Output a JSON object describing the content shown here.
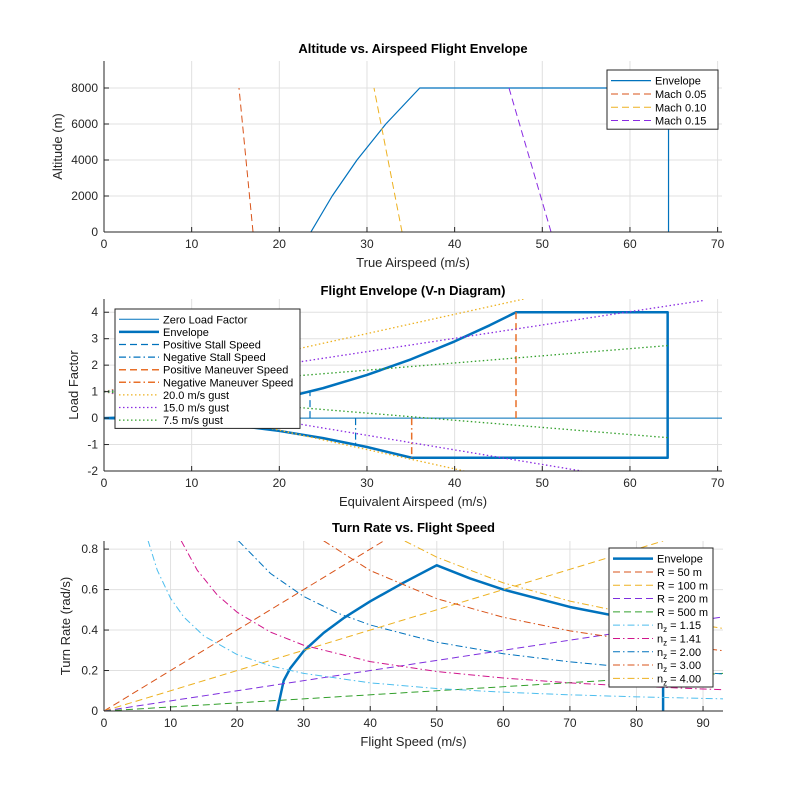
{
  "chart_data": [
    {
      "type": "line",
      "title": "Altitude vs. Airspeed Flight Envelope",
      "xlabel": "True Airspeed (m/s)",
      "ylabel": "Altitude (m)",
      "xlim": [
        0,
        70.5
      ],
      "ylim": [
        0,
        9500
      ],
      "xticks": [
        0,
        10,
        20,
        30,
        40,
        50,
        60,
        70
      ],
      "yticks": [
        0,
        2000,
        4000,
        6000,
        8000
      ],
      "grid": true,
      "legend": "top-right",
      "series": [
        {
          "name": "Envelope",
          "color": "#0072BD",
          "style": "solid",
          "width": 1.2,
          "points": [
            [
              23.6,
              0
            ],
            [
              26.03,
              2000
            ],
            [
              28.86,
              4000
            ],
            [
              32.15,
              6000
            ],
            [
              36.02,
              8000
            ],
            [
              64.4,
              8000
            ],
            [
              64.4,
              0
            ]
          ]
        },
        {
          "name": "Mach 0.05",
          "color": "#D95319",
          "style": "dashed",
          "width": 1,
          "points": [
            [
              17.0,
              0
            ],
            [
              15.4,
              8000
            ]
          ]
        },
        {
          "name": "Mach 0.10",
          "color": "#EDB120",
          "style": "dashed",
          "width": 1,
          "points": [
            [
              34.0,
              0
            ],
            [
              30.8,
              8000
            ]
          ]
        },
        {
          "name": "Mach 0.15",
          "color": "#8A2BE2",
          "style": "dashed",
          "width": 1,
          "points": [
            [
              51.0,
              0
            ],
            [
              46.2,
              8000
            ]
          ]
        }
      ]
    },
    {
      "type": "line",
      "title": "Flight Envelope (V-n Diagram)",
      "xlabel": "Equivalent Airspeed (m/s)",
      "ylabel": "Load Factor",
      "xlim": [
        0,
        70.5
      ],
      "ylim": [
        -2,
        4.5
      ],
      "xticks": [
        0,
        10,
        20,
        30,
        40,
        50,
        60,
        70
      ],
      "yticks": [
        -2,
        -1,
        0,
        1,
        2,
        3,
        4
      ],
      "grid": true,
      "legend": "top-left",
      "series": [
        {
          "name": "Zero Load Factor",
          "color": "#0072BD",
          "style": "solid",
          "width": 1,
          "points": [
            [
              0,
              0
            ],
            [
              70.5,
              0
            ]
          ]
        },
        {
          "name": "Envelope",
          "color": "#0072BD",
          "style": "solid",
          "width": 2.5,
          "points": [
            [
              0,
              0
            ],
            [
              5,
              0.045
            ],
            [
              10,
              0.181
            ],
            [
              15,
              0.407
            ],
            [
              20,
              0.724
            ],
            [
              25,
              1.132
            ],
            [
              30,
              1.63
            ],
            [
              35,
              2.218
            ],
            [
              40,
              2.897
            ],
            [
              44,
              3.506
            ],
            [
              47,
              4
            ],
            [
              64.3,
              4
            ],
            [
              64.3,
              -1.5
            ],
            [
              35.1,
              -1.5
            ],
            [
              30,
              -1.093
            ],
            [
              25,
              -0.759
            ],
            [
              20,
              -0.486
            ],
            [
              15,
              -0.273
            ],
            [
              10,
              -0.121
            ],
            [
              5,
              -0.03
            ],
            [
              0,
              0
            ]
          ]
        },
        {
          "name": "Positive Stall Speed",
          "color": "#0072BD",
          "style": "dashed",
          "width": 1.2,
          "points": [
            [
              23.5,
              0
            ],
            [
              23.5,
              1
            ]
          ]
        },
        {
          "name": "Negative Stall Speed",
          "color": "#0072BD",
          "style": "dashdot",
          "width": 1.2,
          "points": [
            [
              28.7,
              0
            ],
            [
              28.7,
              -1
            ]
          ]
        },
        {
          "name": "Positive Maneuver Speed",
          "color": "#E8702A",
          "style": "dashed",
          "width": 1.5,
          "points": [
            [
              47,
              0
            ],
            [
              47,
              4
            ]
          ]
        },
        {
          "name": "Negative Maneuver Speed",
          "color": "#E8702A",
          "style": "dashdot",
          "width": 1.5,
          "points": [
            [
              35.1,
              0
            ],
            [
              35.1,
              -1.5
            ]
          ]
        },
        {
          "name": "20.0 m/s gust",
          "color": "#EDB120",
          "style": "dotted",
          "width": 1.3,
          "points": [
            [
              0,
              1
            ],
            [
              47.9,
              4.5
            ]
          ],
          "points_neg": [
            [
              0,
              1
            ],
            [
              41.1,
              -2
            ]
          ]
        },
        {
          "name": "15.0 m/s gust",
          "color": "#8A2BE2",
          "style": "dotted",
          "width": 1.3,
          "points": [
            [
              0,
              1
            ],
            [
              68.5,
              4.45
            ]
          ],
          "points_neg": [
            [
              0,
              1
            ],
            [
              54.5,
              -2
            ]
          ]
        },
        {
          "name": "7.5 m/s gust",
          "color": "#33A02C",
          "style": "dotted",
          "width": 1.3,
          "points": [
            [
              0,
              1
            ],
            [
              64.3,
              2.74
            ]
          ],
          "points_neg": [
            [
              0,
              1
            ],
            [
              64.3,
              -0.74
            ]
          ]
        }
      ]
    },
    {
      "type": "line",
      "title": "Turn Rate vs. Flight Speed",
      "xlabel": "Flight Speed (m/s)",
      "ylabel": "Turn Rate (rad/s)",
      "xlim": [
        0,
        93
      ],
      "ylim": [
        0,
        0.84
      ],
      "xticks": [
        0,
        10,
        20,
        30,
        40,
        50,
        60,
        70,
        80,
        90
      ],
      "yticks": [
        0,
        0.2,
        0.4,
        0.6,
        0.8
      ],
      "grid": true,
      "legend": "top-right",
      "series": [
        {
          "name": "Envelope",
          "color": "#0072BD",
          "style": "solid",
          "width": 2.5,
          "points": [
            [
              26,
              0
            ],
            [
              27,
              0.15
            ],
            [
              28,
              0.212
            ],
            [
              30,
              0.296
            ],
            [
              33,
              0.386
            ],
            [
              36,
              0.459
            ],
            [
              40,
              0.542
            ],
            [
              45,
              0.634
            ],
            [
              50,
              0.72
            ],
            [
              55,
              0.655
            ],
            [
              60,
              0.6
            ],
            [
              70,
              0.514
            ],
            [
              80,
              0.45
            ],
            [
              84,
              0.429
            ],
            [
              84,
              0
            ]
          ]
        },
        {
          "name": "R = 50 m",
          "color": "#D95319",
          "style": "dashed",
          "width": 1,
          "points": [
            [
              0,
              0
            ],
            [
              42,
              0.84
            ]
          ]
        },
        {
          "name": "R = 100 m",
          "color": "#EDB120",
          "style": "dashed",
          "width": 1,
          "points": [
            [
              0,
              0
            ],
            [
              84,
              0.84
            ]
          ]
        },
        {
          "name": "R = 200 m",
          "color": "#7E2FDE",
          "style": "dashed",
          "width": 1,
          "points": [
            [
              0,
              0
            ],
            [
              93,
              0.465
            ]
          ]
        },
        {
          "name": "R = 500 m",
          "color": "#33A02C",
          "style": "dashed",
          "width": 1,
          "points": [
            [
              0,
              0
            ],
            [
              93,
              0.186
            ]
          ]
        },
        {
          "name": "n_z = 1.15",
          "color": "#4DBEEE",
          "style": "dashdot",
          "width": 1,
          "points": [
            [
              6.6,
              0.844
            ],
            [
              8,
              0.696
            ],
            [
              10,
              0.557
            ],
            [
              12,
              0.464
            ],
            [
              15,
              0.371
            ],
            [
              20,
              0.279
            ],
            [
              25,
              0.223
            ],
            [
              30,
              0.186
            ],
            [
              40,
              0.139
            ],
            [
              50,
              0.111
            ],
            [
              60,
              0.093
            ],
            [
              70,
              0.08
            ],
            [
              80,
              0.07
            ],
            [
              93,
              0.06
            ]
          ]
        },
        {
          "name": "n_z = 1.41",
          "color": "#D0158C",
          "style": "dashdot",
          "width": 1,
          "points": [
            [
              11.6,
              0.841
            ],
            [
              14,
              0.696
            ],
            [
              17,
              0.574
            ],
            [
              20,
              0.488
            ],
            [
              25,
              0.39
            ],
            [
              30,
              0.325
            ],
            [
              40,
              0.244
            ],
            [
              50,
              0.195
            ],
            [
              60,
              0.163
            ],
            [
              70,
              0.139
            ],
            [
              80,
              0.122
            ],
            [
              93,
              0.105
            ]
          ]
        },
        {
          "name": "n_z = 2.00",
          "color": "#0072BD",
          "style": "dashdot",
          "width": 1,
          "points": [
            [
              20.2,
              0.841
            ],
            [
              25,
              0.68
            ],
            [
              30,
              0.566
            ],
            [
              35,
              0.485
            ],
            [
              40,
              0.425
            ],
            [
              50,
              0.34
            ],
            [
              60,
              0.283
            ],
            [
              70,
              0.243
            ],
            [
              80,
              0.212
            ],
            [
              93,
              0.183
            ]
          ]
        },
        {
          "name": "n_z = 3.00",
          "color": "#D95319",
          "style": "dashdot",
          "width": 1,
          "points": [
            [
              33,
              0.841
            ],
            [
              40,
              0.694
            ],
            [
              50,
              0.555
            ],
            [
              60,
              0.463
            ],
            [
              70,
              0.396
            ],
            [
              80,
              0.347
            ],
            [
              93,
              0.298
            ]
          ]
        },
        {
          "name": "n_z = 4.00",
          "color": "#EDB120",
          "style": "dashdot",
          "width": 1,
          "points": [
            [
              45.2,
              0.84
            ],
            [
              50,
              0.76
            ],
            [
              60,
              0.633
            ],
            [
              70,
              0.543
            ],
            [
              80,
              0.475
            ],
            [
              93,
              0.408
            ]
          ]
        }
      ]
    }
  ]
}
